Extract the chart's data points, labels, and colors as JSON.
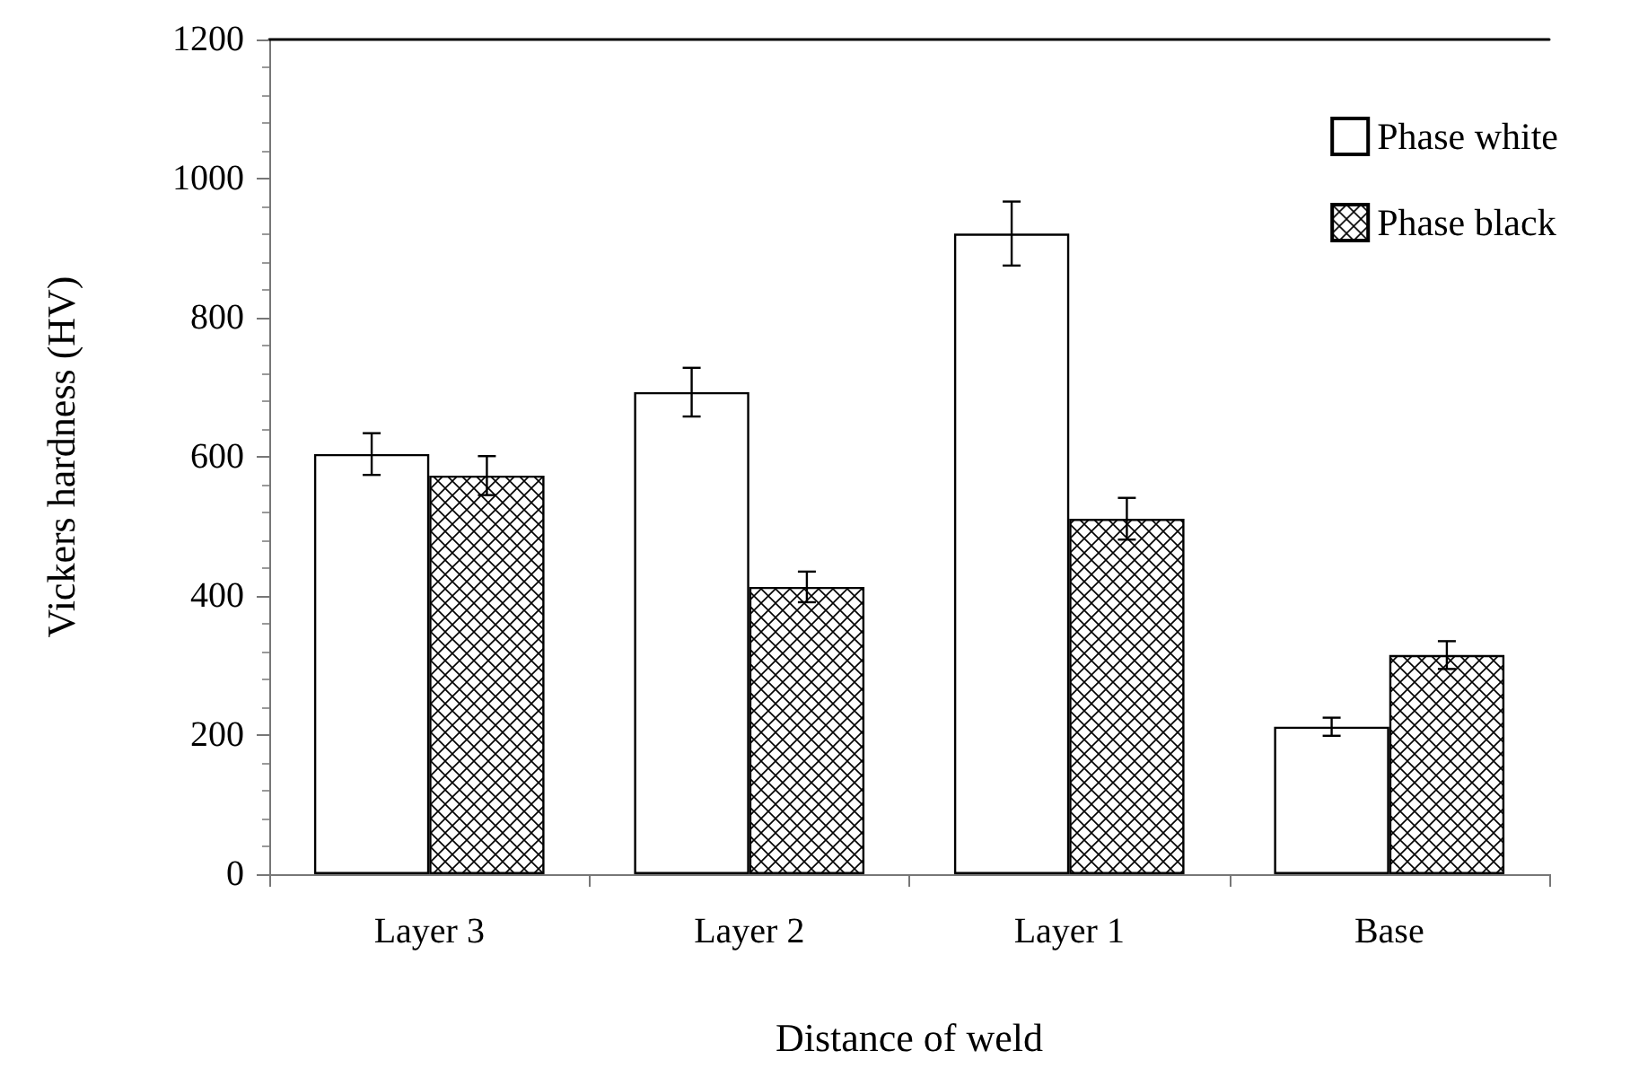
{
  "chart_data": {
    "type": "bar",
    "xlabel": "Distance of weld",
    "ylabel": "Vickers hardness (HV)",
    "categories": [
      "Layer 3",
      "Layer 2",
      "Layer 1",
      "Base"
    ],
    "series": [
      {
        "name": "Phase white",
        "color": "#ffffff",
        "values": [
          604,
          693,
          921,
          212
        ],
        "errors": [
          30,
          35,
          46,
          13
        ]
      },
      {
        "name": "Phase black",
        "color": "#000000",
        "values": [
          573,
          413,
          511,
          315
        ],
        "errors": [
          28,
          22,
          30,
          20
        ]
      }
    ],
    "ylim": [
      0,
      1200
    ],
    "yticks": [
      0,
      200,
      400,
      600,
      800,
      1000,
      1200
    ],
    "grid": false,
    "legend": "top right"
  }
}
